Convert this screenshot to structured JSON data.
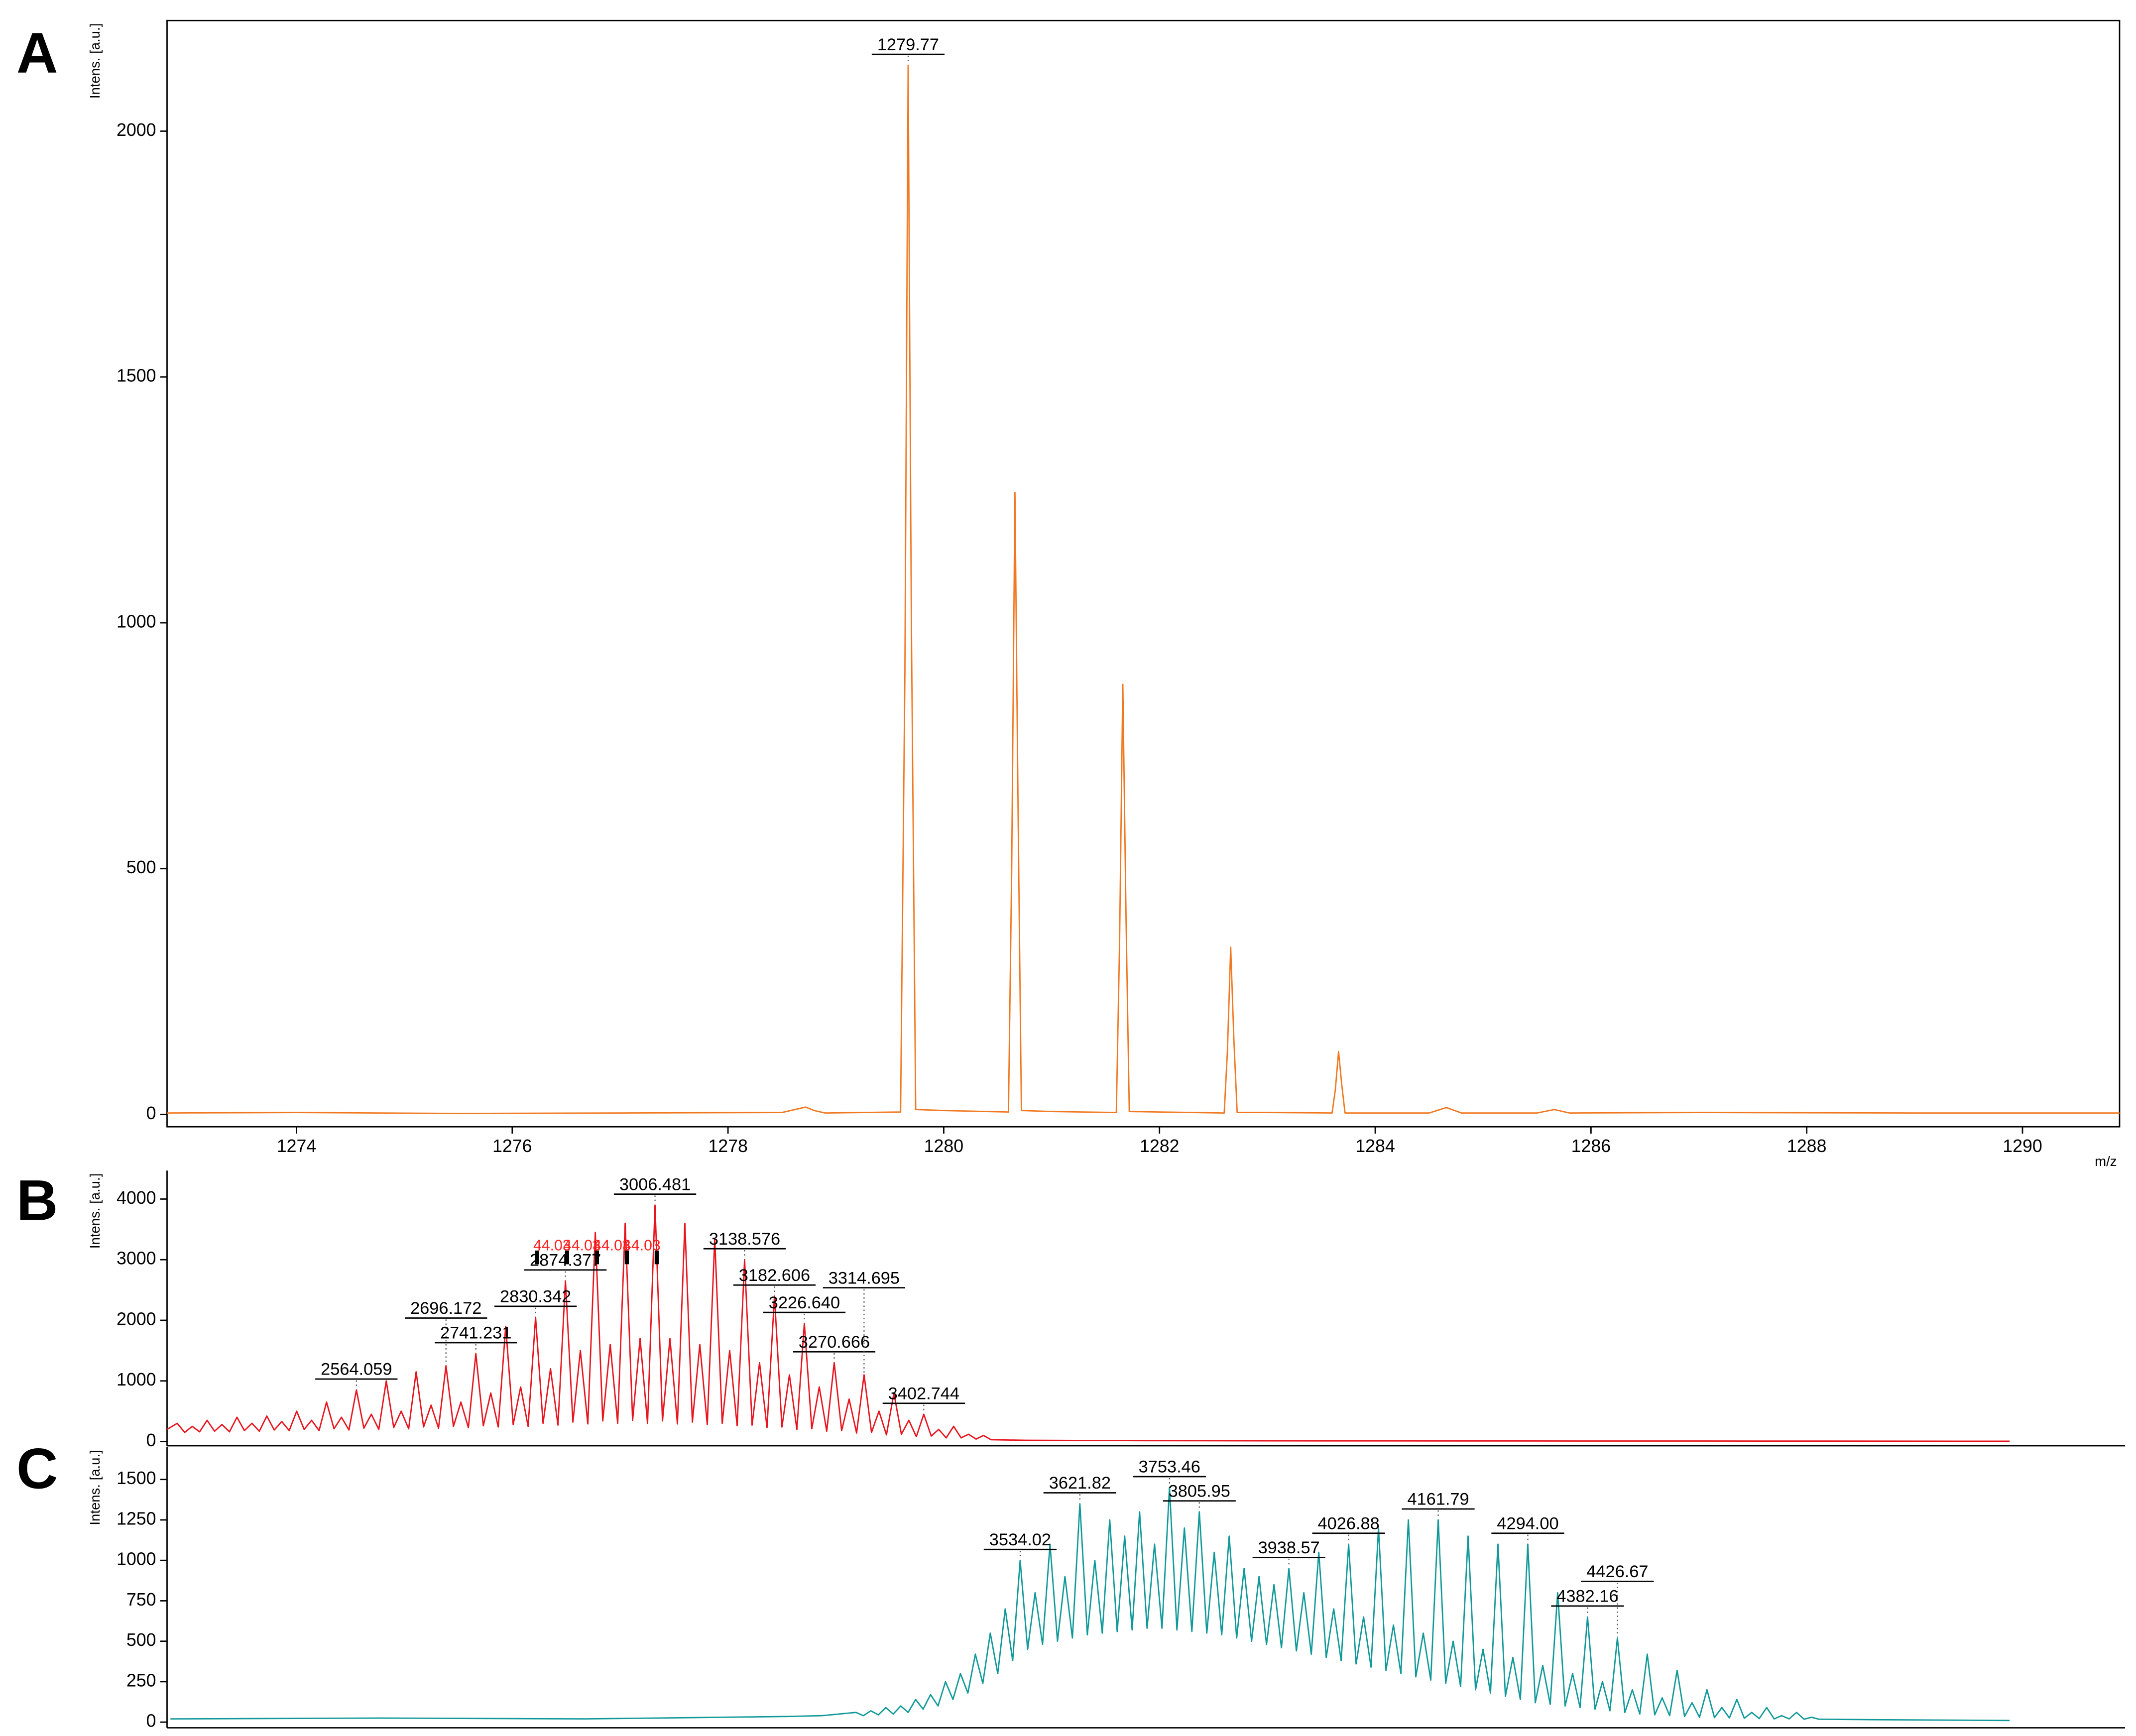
{
  "chart_data": [
    {
      "type": "line",
      "title": "A",
      "y_label": "Intens. [a.u.]",
      "x_label": "m/z",
      "color": "#f07820",
      "xlim": [
        1272.8,
        1290.9
      ],
      "xticks": [
        1274,
        1276,
        1278,
        1280,
        1282,
        1284,
        1286,
        1288,
        1290
      ],
      "ylim": [
        -25,
        2225
      ],
      "yticks": [
        0,
        500,
        1000,
        1500,
        2000
      ],
      "x": [
        1272.8,
        1274,
        1275.5,
        1277,
        1278.5,
        1278.72,
        1278.8,
        1278.9,
        1279.6,
        1279.64,
        1279.67,
        1279.7,
        1279.74,
        1280.0,
        1280.6,
        1280.63,
        1280.66,
        1280.69,
        1280.72,
        1281.0,
        1281.6,
        1281.63,
        1281.66,
        1281.69,
        1281.72,
        1282.0,
        1282.6,
        1282.63,
        1282.66,
        1282.69,
        1282.72,
        1283.0,
        1283.6,
        1283.63,
        1283.66,
        1283.69,
        1283.72,
        1284.5,
        1284.66,
        1284.8,
        1285.5,
        1285.66,
        1285.8,
        1287,
        1289,
        1290.9
      ],
      "values": [
        3,
        4,
        2,
        3,
        4,
        15,
        8,
        3,
        5,
        900,
        2134,
        1000,
        10,
        8,
        5,
        500,
        1265,
        600,
        8,
        6,
        4,
        350,
        875,
        400,
        6,
        5,
        3,
        130,
        340,
        150,
        4,
        4,
        3,
        50,
        128,
        60,
        3,
        3,
        14,
        3,
        3,
        10,
        3,
        4,
        3,
        3
      ],
      "peak_labels": [
        1279.77
      ]
    },
    {
      "type": "line",
      "title": "B",
      "y_label": "Intens. [a.u.]",
      "color": "#e8141e",
      "xlim": [
        2285,
        5170
      ],
      "ylim": [
        -70,
        4470
      ],
      "yticks": [
        0,
        1000,
        2000,
        3000,
        4000
      ],
      "x": [
        2285,
        2300,
        2311,
        2322,
        2333,
        2344,
        2355,
        2366,
        2377,
        2388,
        2399,
        2410,
        2421,
        2432,
        2443,
        2454,
        2465,
        2476,
        2487,
        2498,
        2509,
        2520,
        2531,
        2542,
        2553,
        2564,
        2575,
        2586,
        2597,
        2608,
        2619,
        2630,
        2641,
        2652,
        2663,
        2674,
        2685,
        2696,
        2707,
        2718,
        2729,
        2740,
        2751,
        2762,
        2773,
        2784,
        2795,
        2806,
        2817,
        2828,
        2839,
        2850,
        2861,
        2872,
        2883,
        2894,
        2905,
        2916,
        2927,
        2938,
        2949,
        2960,
        2971,
        2982,
        2993,
        3004,
        3015,
        3026,
        3037,
        3048,
        3059,
        3070,
        3081,
        3092,
        3103,
        3114,
        3125,
        3136,
        3147,
        3158,
        3169,
        3180,
        3191,
        3202,
        3213,
        3224,
        3235,
        3246,
        3257,
        3268,
        3279,
        3290,
        3301,
        3312,
        3323,
        3334,
        3345,
        3356,
        3367,
        3378,
        3389,
        3400,
        3411,
        3422,
        3433,
        3444,
        3455,
        3466,
        3477,
        3488,
        3499,
        3550,
        3700,
        4000,
        4500,
        5000
      ],
      "values": [
        200,
        300,
        150,
        250,
        160,
        350,
        170,
        280,
        160,
        400,
        180,
        300,
        170,
        420,
        190,
        330,
        180,
        500,
        200,
        350,
        180,
        650,
        210,
        400,
        190,
        850,
        220,
        450,
        200,
        1000,
        230,
        500,
        210,
        1150,
        240,
        600,
        220,
        1250,
        250,
        650,
        230,
        1450,
        260,
        800,
        240,
        1900,
        280,
        900,
        250,
        2050,
        300,
        1200,
        270,
        2650,
        320,
        1500,
        290,
        3450,
        340,
        1600,
        300,
        3600,
        350,
        1700,
        300,
        3900,
        340,
        1700,
        290,
        3600,
        320,
        1600,
        280,
        3350,
        300,
        1500,
        260,
        3000,
        270,
        1300,
        230,
        2400,
        240,
        1100,
        200,
        1950,
        210,
        900,
        170,
        1300,
        180,
        700,
        140,
        1100,
        150,
        500,
        110,
        800,
        120,
        350,
        80,
        450,
        90,
        200,
        60,
        250,
        60,
        120,
        40,
        100,
        30,
        20,
        15,
        10,
        8,
        5
      ],
      "peak_labels": [
        2564.059,
        2696.172,
        2741.231,
        2830.342,
        2874.377,
        3006.481,
        3138.576,
        3182.606,
        {
          "value": 3226.64,
          "label": "3226.640"
        },
        3270.666,
        3314.695,
        3402.744
      ],
      "deltas": [
        44.03,
        44.03,
        44.03,
        44.03
      ],
      "delta_color": "#ff2020"
    },
    {
      "type": "line",
      "title": "C",
      "y_label": "Intens. [a.u.]",
      "color": "#119999",
      "xlim": [
        2285,
        5170
      ],
      "ylim": [
        -35,
        1700
      ],
      "yticks": [
        0,
        250,
        500,
        750,
        1000,
        1250,
        1500
      ],
      "x": [
        2290,
        2600,
        2900,
        3100,
        3200,
        3250,
        3300,
        3311,
        3322,
        3333,
        3344,
        3355,
        3366,
        3377,
        3388,
        3399,
        3410,
        3421,
        3432,
        3443,
        3454,
        3465,
        3476,
        3487,
        3498,
        3509,
        3520,
        3531,
        3542,
        3553,
        3564,
        3575,
        3586,
        3597,
        3608,
        3619,
        3630,
        3641,
        3652,
        3663,
        3674,
        3685,
        3696,
        3707,
        3718,
        3729,
        3740,
        3751,
        3762,
        3773,
        3784,
        3795,
        3806,
        3817,
        3828,
        3839,
        3850,
        3861,
        3872,
        3883,
        3894,
        3905,
        3916,
        3927,
        3938,
        3949,
        3960,
        3971,
        3982,
        3993,
        4004,
        4015,
        4026,
        4037,
        4048,
        4059,
        4070,
        4081,
        4092,
        4103,
        4114,
        4125,
        4136,
        4147,
        4158,
        4169,
        4180,
        4191,
        4202,
        4213,
        4224,
        4235,
        4246,
        4257,
        4268,
        4279,
        4290,
        4301,
        4312,
        4323,
        4334,
        4345,
        4356,
        4367,
        4378,
        4389,
        4400,
        4411,
        4422,
        4433,
        4444,
        4455,
        4466,
        4477,
        4488,
        4499,
        4510,
        4521,
        4532,
        4543,
        4554,
        4565,
        4576,
        4587,
        4598,
        4609,
        4620,
        4631,
        4642,
        4653,
        4664,
        4675,
        4686,
        4697,
        4708,
        4719,
        4800,
        5000
      ],
      "values": [
        20,
        25,
        20,
        30,
        35,
        40,
        60,
        40,
        70,
        45,
        90,
        50,
        100,
        60,
        140,
        80,
        170,
        100,
        250,
        140,
        300,
        180,
        420,
        240,
        550,
        300,
        700,
        380,
        1000,
        450,
        800,
        480,
        1100,
        500,
        900,
        520,
        1350,
        540,
        1000,
        550,
        1250,
        560,
        1150,
        570,
        1300,
        580,
        1100,
        580,
        1450,
        570,
        1200,
        560,
        1300,
        550,
        1050,
        540,
        1150,
        520,
        950,
        500,
        900,
        480,
        850,
        460,
        950,
        440,
        800,
        420,
        1050,
        400,
        700,
        380,
        1100,
        360,
        650,
        340,
        1200,
        320,
        600,
        300,
        1250,
        280,
        550,
        260,
        1250,
        240,
        500,
        220,
        1150,
        200,
        450,
        180,
        1100,
        160,
        400,
        140,
        1100,
        120,
        350,
        110,
        800,
        100,
        300,
        90,
        650,
        80,
        250,
        70,
        520,
        60,
        200,
        50,
        420,
        45,
        150,
        40,
        320,
        35,
        120,
        30,
        200,
        28,
        90,
        26,
        140,
        24,
        60,
        22,
        90,
        20,
        40,
        20,
        60,
        18,
        30,
        18,
        15,
        10
      ],
      "peak_labels": [
        3534.02,
        3621.82,
        3753.46,
        3805.95,
        3938.57,
        4026.88,
        4161.79,
        {
          "value": 4294,
          "label": "4294.00"
        },
        4382.16,
        4426.67
      ]
    }
  ]
}
